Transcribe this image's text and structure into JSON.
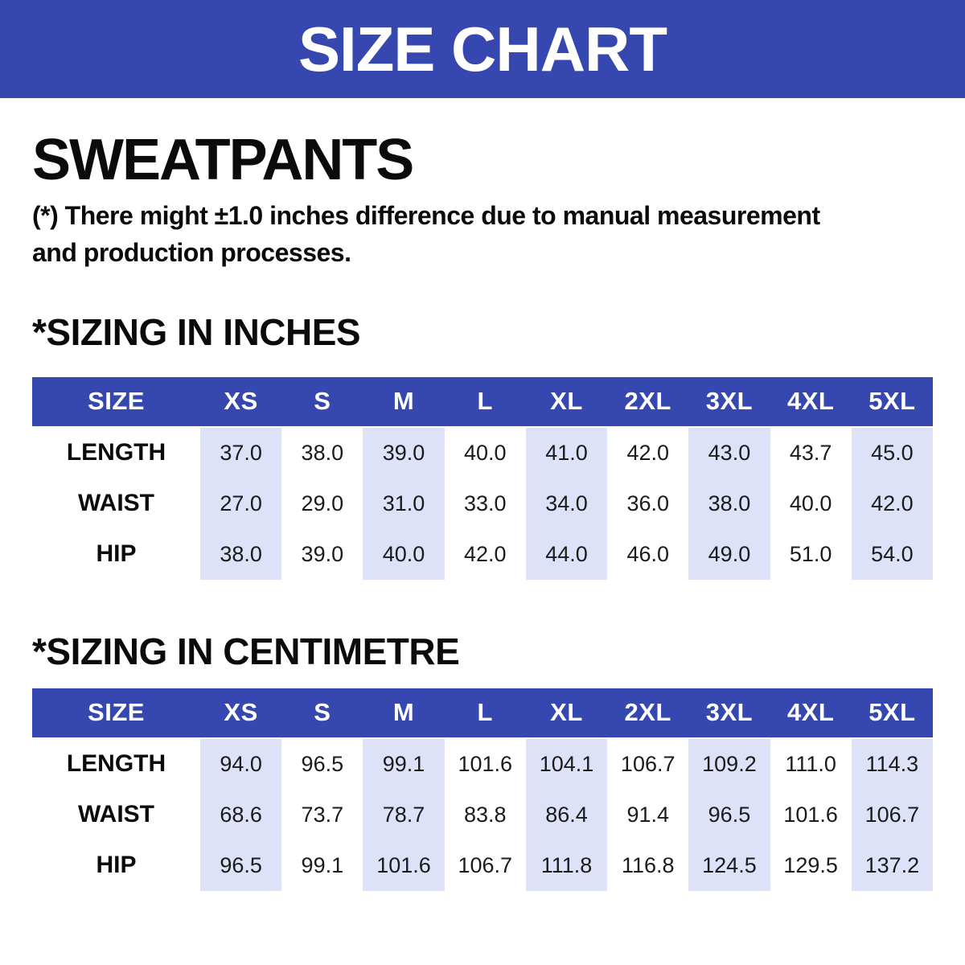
{
  "banner": {
    "title": "SIZE CHART"
  },
  "page": {
    "product_title": "SWEATPANTS",
    "note_lines": [
      "(*) There might ±1.0 inches difference due to manual measurement",
      "and production processes."
    ]
  },
  "colors": {
    "primary_blue": "#3648b0",
    "stripe": "#dde2f8",
    "header_text": "#ffffff",
    "body_text": "#0b0b0b"
  },
  "tables": [
    {
      "id": "inches",
      "heading": "*SIZING IN INCHES",
      "columns": [
        "SIZE",
        "XS",
        "S",
        "M",
        "L",
        "XL",
        "2XL",
        "3XL",
        "4XL",
        "5XL"
      ],
      "rows": [
        {
          "label": "LENGTH",
          "values": [
            "37.0",
            "38.0",
            "39.0",
            "40.0",
            "41.0",
            "42.0",
            "43.0",
            "43.7",
            "45.0"
          ]
        },
        {
          "label": "WAIST",
          "values": [
            "27.0",
            "29.0",
            "31.0",
            "33.0",
            "34.0",
            "36.0",
            "38.0",
            "40.0",
            "42.0"
          ]
        },
        {
          "label": "HIP",
          "values": [
            "38.0",
            "39.0",
            "40.0",
            "42.0",
            "44.0",
            "46.0",
            "49.0",
            "51.0",
            "54.0"
          ]
        }
      ]
    },
    {
      "id": "centimetre",
      "heading": "*SIZING IN CENTIMETRE",
      "columns": [
        "SIZE",
        "XS",
        "S",
        "M",
        "L",
        "XL",
        "2XL",
        "3XL",
        "4XL",
        "5XL"
      ],
      "rows": [
        {
          "label": "LENGTH",
          "values": [
            "94.0",
            "96.5",
            "99.1",
            "101.6",
            "104.1",
            "106.7",
            "109.2",
            "111.0",
            "114.3"
          ]
        },
        {
          "label": "WAIST",
          "values": [
            "68.6",
            "73.7",
            "78.7",
            "83.8",
            "86.4",
            "91.4",
            "96.5",
            "101.6",
            "106.7"
          ]
        },
        {
          "label": "HIP",
          "values": [
            "96.5",
            "99.1",
            "101.6",
            "106.7",
            "111.8",
            "116.8",
            "124.5",
            "129.5",
            "137.2"
          ]
        }
      ]
    }
  ]
}
